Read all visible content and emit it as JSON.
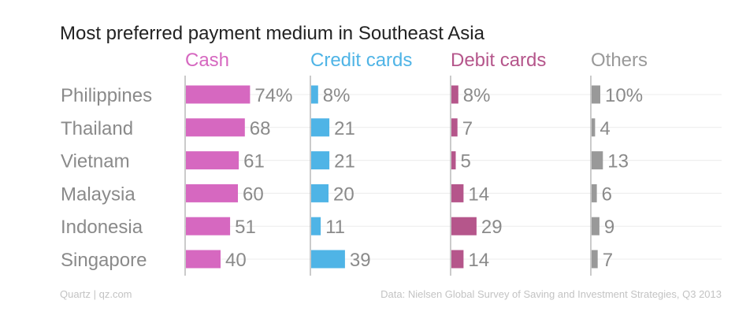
{
  "chart_data": {
    "type": "bar",
    "title": "Most preferred payment medium in Southeast Asia",
    "categories": [
      "Philippines",
      "Thailand",
      "Vietnam",
      "Malaysia",
      "Indonesia",
      "Singapore"
    ],
    "series": [
      {
        "name": "Cash",
        "color": "#d668c0",
        "values": [
          74,
          68,
          61,
          60,
          51,
          40
        ],
        "labels": [
          "74%",
          "68",
          "61",
          "60",
          "51",
          "40"
        ]
      },
      {
        "name": "Credit cards",
        "color": "#4fb4e6",
        "values": [
          8,
          21,
          21,
          20,
          11,
          39
        ],
        "labels": [
          "8%",
          "21",
          "21",
          "20",
          "11",
          "39"
        ]
      },
      {
        "name": "Debit cards",
        "color": "#b5568b",
        "values": [
          8,
          7,
          5,
          14,
          29,
          14
        ],
        "labels": [
          "8%",
          "7",
          "5",
          "14",
          "29",
          "14"
        ]
      },
      {
        "name": "Others",
        "color": "#999999",
        "values": [
          10,
          4,
          13,
          6,
          9,
          7
        ],
        "labels": [
          "10%",
          "4",
          "13",
          "6",
          "9",
          "7"
        ]
      }
    ],
    "header_colors": [
      "#d668c0",
      "#4fb4e6",
      "#b5568b",
      "#999999"
    ],
    "grid": true
  },
  "footer": {
    "source": "Quartz | qz.com",
    "note": "Data: Nielsen Global Survey of Saving and Investment Strategies, Q3 2013"
  }
}
